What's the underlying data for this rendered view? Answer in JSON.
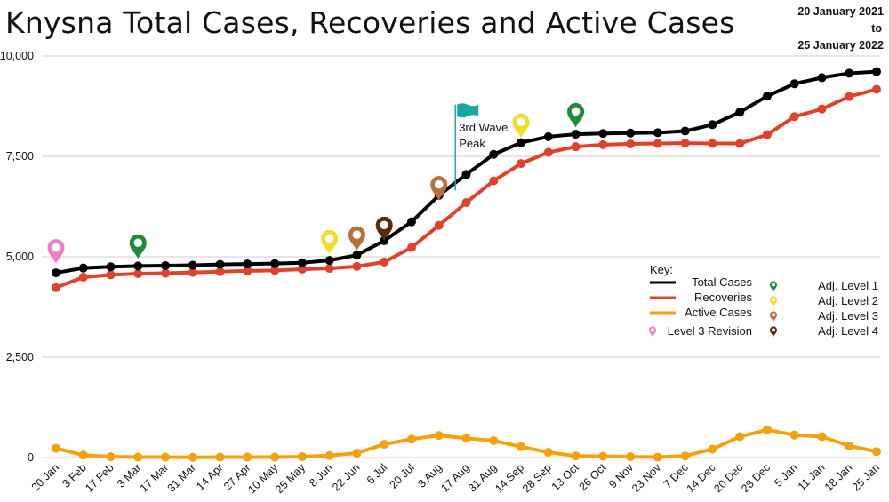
{
  "title": "Knysna Total Cases, Recoveries and Active Cases",
  "date_range": {
    "from": "20 January 2021",
    "to_word": "to",
    "to": "25 January 2022"
  },
  "colors": {
    "total": "#000000",
    "recoveries": "#e0412a",
    "active": "#f5a00f",
    "grid": "#cfcfcf",
    "level1": "#1f8a3c",
    "level2": "#f2dc2e",
    "level3": "#b5723f",
    "level4": "#5a2a0c",
    "level3_revision": "#f07cc8",
    "wave_flag": "#1aa6a6"
  },
  "legend": {
    "title": "Key:",
    "total": "Total Cases",
    "recoveries": "Recoveries",
    "active": "Active Cases",
    "level3_revision": "Level 3 Revision",
    "level1": "Adj. Level 1",
    "level2": "Adj. Level 2",
    "level3": "Adj. Level 3",
    "level4": "Adj. Level 4"
  },
  "annotation": {
    "line1": "3rd Wave",
    "line2": "Peak"
  },
  "chart_data": {
    "type": "line",
    "title": "Knysna Total Cases, Recoveries and Active Cases",
    "xlabel": "",
    "ylabel": "",
    "ylim": [
      0,
      10000
    ],
    "yticks": [
      "0",
      "2,500",
      "5,000",
      "7,500",
      "10,000"
    ],
    "grid": true,
    "legend_position": "right",
    "categories": [
      "20 Jan",
      "3 Feb",
      "17 Feb",
      "3 Mar",
      "17 Mar",
      "31 Mar",
      "14 Apr",
      "27 Apr",
      "10 May",
      "25 May",
      "8 Jun",
      "22 Jun",
      "6 Jul",
      "20 Jul",
      "3 Aug",
      "17 Aug",
      "31 Aug",
      "14 Sep",
      "28 Sep",
      "13 Oct",
      "26 Oct",
      "9 Nov",
      "23 Nov",
      "7 Dec",
      "14 Dec",
      "20 Dec",
      "28 Dec",
      "5 Jan",
      "11 Jan",
      "18 Jan",
      "25 Jan"
    ],
    "series": [
      {
        "name": "Total Cases",
        "color": "#000000",
        "values": [
          4600,
          4720,
          4750,
          4770,
          4780,
          4790,
          4810,
          4820,
          4830,
          4850,
          4910,
          5040,
          5400,
          5870,
          6530,
          7050,
          7550,
          7840,
          7990,
          8050,
          8070,
          8080,
          8090,
          8130,
          8290,
          8600,
          9000,
          9310,
          9460,
          9570,
          9610
        ]
      },
      {
        "name": "Recoveries",
        "color": "#e0412a",
        "values": [
          4230,
          4490,
          4550,
          4580,
          4590,
          4610,
          4630,
          4650,
          4660,
          4690,
          4710,
          4760,
          4870,
          5230,
          5780,
          6350,
          6890,
          7320,
          7600,
          7740,
          7790,
          7810,
          7820,
          7830,
          7820,
          7820,
          8040,
          8490,
          8680,
          8990,
          9170
        ]
      },
      {
        "name": "Active Cases",
        "color": "#f5a00f",
        "values": [
          230,
          60,
          20,
          10,
          10,
          5,
          10,
          10,
          10,
          20,
          50,
          110,
          330,
          460,
          550,
          480,
          420,
          270,
          130,
          40,
          30,
          20,
          10,
          40,
          210,
          520,
          690,
          560,
          520,
          290,
          150
        ]
      }
    ],
    "markers": [
      {
        "type": "level3_revision",
        "category": "20 Jan",
        "value": 4830
      },
      {
        "type": "level1",
        "category": "3 Mar",
        "value": 4950
      },
      {
        "type": "level2",
        "category": "8 Jun",
        "value": 5060
      },
      {
        "type": "level3",
        "category": "22 Jun",
        "value": 5150
      },
      {
        "type": "level4",
        "category": "6 Jul",
        "value": 5390
      },
      {
        "type": "level3",
        "category": "3 Aug",
        "value": 6400
      },
      {
        "type": "level2",
        "category": "14 Sep",
        "value": 7960
      },
      {
        "type": "level1",
        "category": "13 Oct",
        "value": 8220
      }
    ],
    "peak_flag": {
      "category_index": 14.6,
      "value": 8700,
      "base": 6650
    }
  }
}
